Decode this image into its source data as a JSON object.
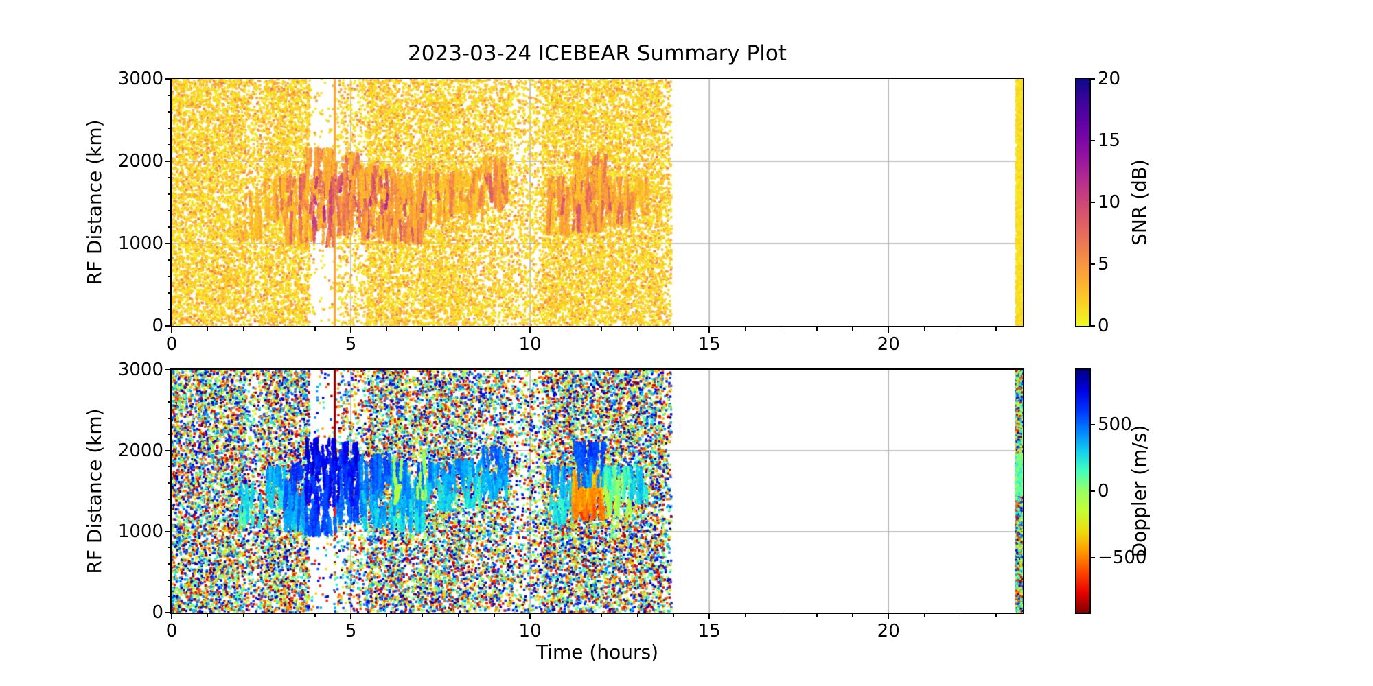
{
  "figure": {
    "background": "#ffffff",
    "text_color": "#000000"
  },
  "chart_data": {
    "type": "scatter",
    "title": "2023-03-24 ICEBEAR Summary Plot",
    "xlabel": "Time (hours)",
    "x": {
      "lim": [
        0,
        23.75
      ],
      "ticks": [
        0,
        5,
        10,
        15,
        20
      ],
      "tick_labels": [
        "0",
        "5",
        "10",
        "15",
        "20"
      ],
      "minor_step": 1
    },
    "y": {
      "label": "RF Distance (km)",
      "lim": [
        0,
        3000
      ],
      "ticks": [
        0,
        1000,
        2000,
        3000
      ],
      "tick_labels": [
        "0",
        "1000",
        "2000",
        "3000"
      ],
      "minor_step": 200
    },
    "grid": true,
    "grid_color": "#b0b0b0",
    "colormaps": {
      "plasma": [
        [
          0,
          "#0d0887"
        ],
        [
          0.1,
          "#41049d"
        ],
        [
          0.2,
          "#6a00a8"
        ],
        [
          0.3,
          "#8f0da4"
        ],
        [
          0.4,
          "#b12a90"
        ],
        [
          0.5,
          "#cc4778"
        ],
        [
          0.6,
          "#e16462"
        ],
        [
          0.7,
          "#f2844b"
        ],
        [
          0.8,
          "#fca636"
        ],
        [
          0.9,
          "#fcce25"
        ],
        [
          1,
          "#f0f921"
        ]
      ],
      "jet": [
        [
          0,
          "#000080"
        ],
        [
          0.1,
          "#0000f3"
        ],
        [
          0.2,
          "#004dff"
        ],
        [
          0.3,
          "#00b3ff"
        ],
        [
          0.4,
          "#33ffcc"
        ],
        [
          0.5,
          "#99ff66"
        ],
        [
          0.6,
          "#cdff29"
        ],
        [
          0.7,
          "#ffc700"
        ],
        [
          0.8,
          "#ff6800"
        ],
        [
          0.9,
          "#fc0300"
        ],
        [
          1,
          "#800000"
        ]
      ]
    },
    "noise_time_range": [
      0,
      13.95
    ],
    "density_gaps": [
      {
        "t": [
          2.05,
          2.6
        ],
        "keep": 0.65
      },
      {
        "t": [
          3.85,
          4.6
        ],
        "keep": 0.07
      },
      {
        "t": [
          4.6,
          5.45
        ],
        "keep": 0.4
      },
      {
        "t": [
          6.55,
          7.0
        ],
        "keep": 0.75
      },
      {
        "t": [
          8.3,
          9.5
        ],
        "keep": 0.7
      },
      {
        "t": [
          9.5,
          10.35
        ],
        "keep": 0.45
      },
      {
        "t": [
          13.7,
          13.95
        ],
        "keep": 0.55
      }
    ],
    "echo_clusters": [
      {
        "t": [
          1.9,
          2.6
        ],
        "r": [
          1050,
          1600
        ],
        "d": 0.35,
        "dop": [
          50,
          450
        ],
        "snr": [
          2.5,
          7
        ]
      },
      {
        "t": [
          2.6,
          3.15
        ],
        "r": [
          1300,
          1800
        ],
        "d": 0.55,
        "dop": [
          150,
          550
        ],
        "snr": [
          2.5,
          8
        ]
      },
      {
        "t": [
          3.15,
          3.75
        ],
        "r": [
          1000,
          1850
        ],
        "d": 1.1,
        "dop": [
          250,
          700
        ],
        "snr": [
          2.5,
          11
        ]
      },
      {
        "t": [
          3.75,
          4.6
        ],
        "r": [
          950,
          2150
        ],
        "d": 1.8,
        "dop": [
          450,
          880
        ],
        "snr": [
          3,
          14
        ]
      },
      {
        "t": [
          4.6,
          5.25
        ],
        "r": [
          1100,
          2100
        ],
        "d": 1.6,
        "dop": [
          400,
          850
        ],
        "snr": [
          3,
          14
        ]
      },
      {
        "t": [
          5.25,
          6.15
        ],
        "r": [
          1050,
          1950
        ],
        "d": 1.3,
        "dop": [
          200,
          650
        ],
        "snr": [
          3,
          12
        ]
      },
      {
        "t": [
          6.15,
          7.1
        ],
        "r": [
          1000,
          1850
        ],
        "d": 1.4,
        "dop": [
          150,
          600
        ],
        "snr": [
          3,
          13
        ]
      },
      {
        "t": [
          6.1,
          6.4
        ],
        "r": [
          1300,
          1900
        ],
        "d": 0.3,
        "dop": [
          -150,
          80
        ],
        "snr": [
          2.5,
          6
        ]
      },
      {
        "t": [
          6.85,
          7.15
        ],
        "r": [
          1400,
          2000
        ],
        "d": 0.3,
        "dop": [
          -120,
          100
        ],
        "snr": [
          2.5,
          6
        ]
      },
      {
        "t": [
          7.15,
          7.9
        ],
        "r": [
          1250,
          1850
        ],
        "d": 0.7,
        "dop": [
          150,
          550
        ],
        "snr": [
          2.5,
          9
        ]
      },
      {
        "t": [
          7.9,
          8.7
        ],
        "r": [
          1300,
          1900
        ],
        "d": 0.55,
        "dop": [
          150,
          500
        ],
        "snr": [
          2.5,
          8
        ]
      },
      {
        "t": [
          8.7,
          9.4
        ],
        "r": [
          1400,
          2050
        ],
        "d": 0.8,
        "dop": [
          250,
          600
        ],
        "snr": [
          2.5,
          10
        ]
      },
      {
        "t": [
          10.5,
          11.2
        ],
        "r": [
          1100,
          1800
        ],
        "d": 0.7,
        "dop": [
          100,
          550
        ],
        "snr": [
          2.5,
          9
        ]
      },
      {
        "t": [
          11.2,
          12.05
        ],
        "r": [
          1150,
          1750
        ],
        "d": 1.2,
        "dop": [
          -650,
          -250
        ],
        "snr": [
          3,
          12
        ]
      },
      {
        "t": [
          11.25,
          12.1
        ],
        "r": [
          1550,
          2100
        ],
        "d": 0.8,
        "dop": [
          300,
          750
        ],
        "snr": [
          2.5,
          10
        ]
      },
      {
        "t": [
          12.05,
          12.8
        ],
        "r": [
          1200,
          1800
        ],
        "d": 0.8,
        "dop": [
          -250,
          350
        ],
        "snr": [
          2.5,
          9
        ]
      },
      {
        "t": [
          12.8,
          13.3
        ],
        "r": [
          1350,
          1800
        ],
        "d": 0.45,
        "dop": [
          100,
          500
        ],
        "snr": [
          2.5,
          7
        ]
      }
    ],
    "panels": [
      {
        "name": "snr",
        "color_label": "SNR (dB)",
        "colormap": "plasma_r",
        "color_range": [
          0,
          20
        ],
        "colorbar_ticks": [
          0,
          5,
          10,
          15,
          20
        ],
        "colorbar_tick_labels": [
          "0",
          "5",
          "10",
          "15",
          "20"
        ],
        "value_key": "snr",
        "noise": {
          "count": 26000,
          "value_mix": [
            [
              0.7,
              0.3,
              2.5
            ],
            [
              0.22,
              2.5,
              4.5
            ],
            [
              0.08,
              4,
              7
            ]
          ]
        },
        "vertical_lines": [
          {
            "t": 4.55,
            "r": [
              0,
              3000
            ],
            "value": 4
          }
        ],
        "edge_stripe": {
          "t": [
            23.56,
            23.75
          ],
          "value_mix": [
            [
              1,
              0.3,
              2.2
            ]
          ],
          "solid_fill_value": 1.3,
          "dots": 1700
        },
        "seed": 20230324
      },
      {
        "name": "doppler",
        "color_label": "Doppler (m/s)",
        "colormap": "jet_r",
        "color_range": [
          -910,
          910
        ],
        "colorbar_ticks": [
          -500,
          0,
          500
        ],
        "colorbar_tick_labels": [
          "−500",
          "0",
          "500"
        ],
        "value_key": "dop",
        "noise": {
          "count": 23000,
          "value_mix": [
            [
              1,
              -910,
              910
            ]
          ]
        },
        "vertical_lines": [
          {
            "t": 4.55,
            "r": [
              2050,
              3000
            ],
            "value": -880
          },
          {
            "t": 4.55,
            "r": [
              950,
              1350
            ],
            "value": -700
          }
        ],
        "line_dot_trail": {
          "t": 4.55,
          "r": [
            0,
            950
          ],
          "count": 26
        },
        "edge_stripe": {
          "t": [
            23.56,
            23.75
          ],
          "value_mix": [
            [
              0.75,
              -910,
              910
            ],
            [
              0.25,
              -120,
              280
            ]
          ],
          "dots": 3300,
          "green_band": {
            "r": [
              1450,
              1950
            ],
            "count": 550,
            "value": [
              -80,
              260
            ]
          }
        },
        "seed": 324
      }
    ]
  }
}
